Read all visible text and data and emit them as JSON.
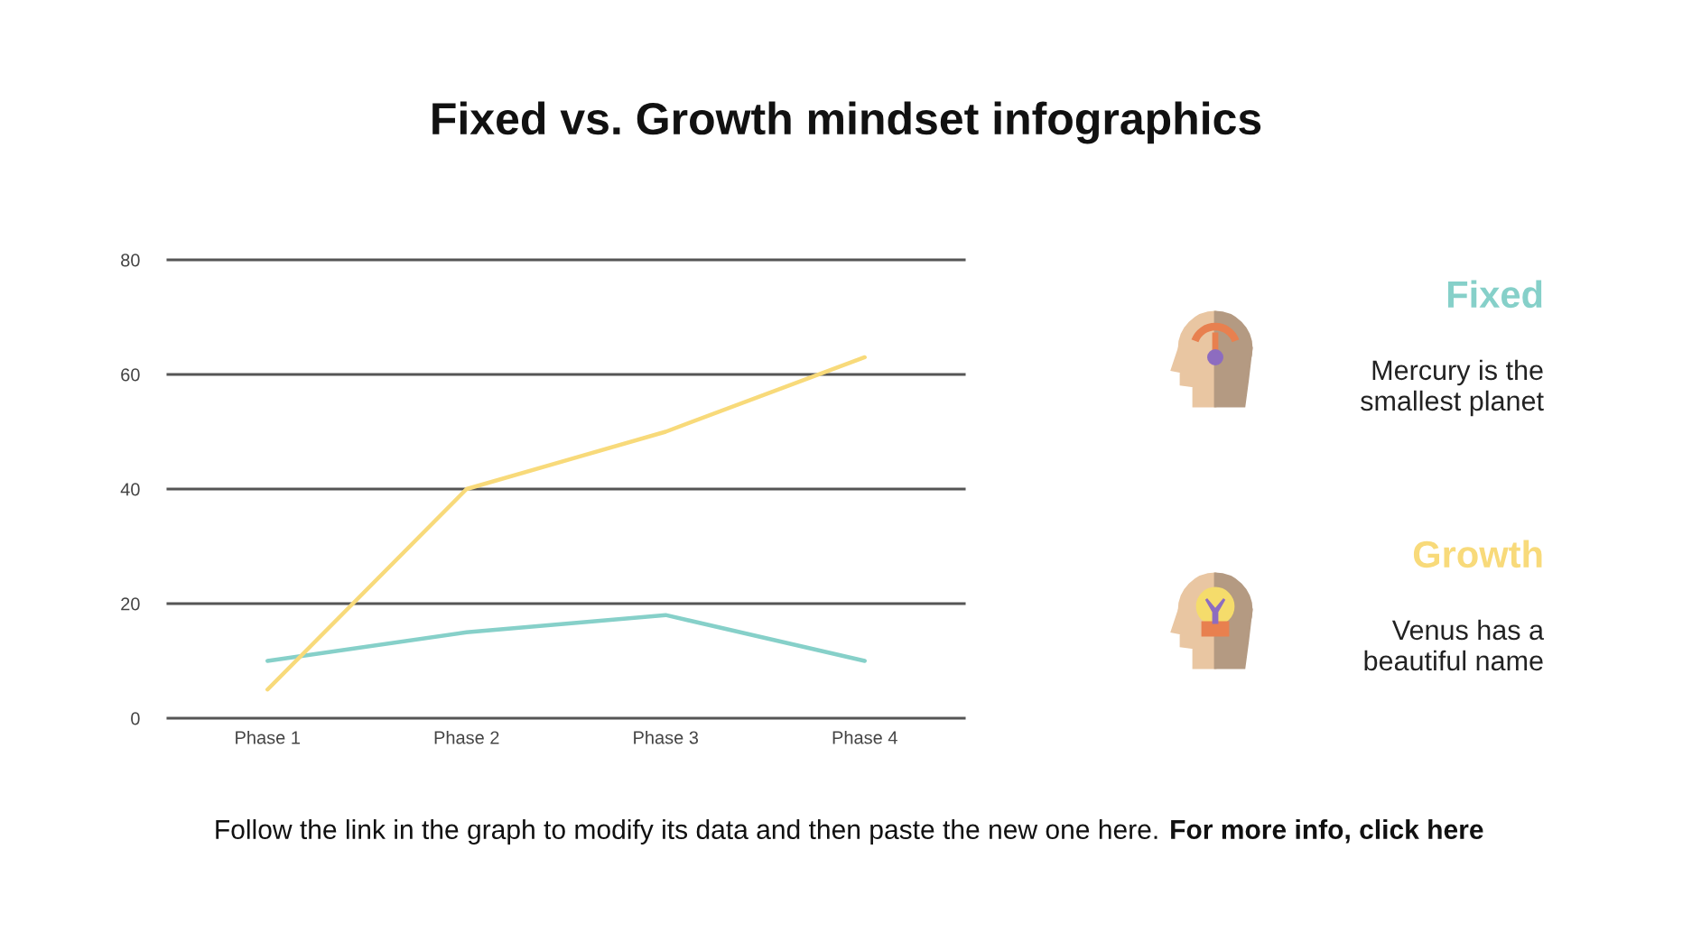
{
  "chart_data": {
    "type": "line",
    "title": "Fixed vs. Growth mindset infographics",
    "categories": [
      "Phase 1",
      "Phase 2",
      "Phase 3",
      "Phase 4"
    ],
    "series": [
      {
        "name": "Fixed",
        "color": "#86d0c9",
        "values": [
          10,
          15,
          18,
          10
        ]
      },
      {
        "name": "Growth",
        "color": "#f8da7a",
        "values": [
          5,
          40,
          50,
          63
        ]
      }
    ],
    "ylim": [
      0,
      80
    ],
    "yticks": [
      0,
      20,
      40,
      60,
      80
    ],
    "grid": "y",
    "legend": "right",
    "annotations": [
      "Mercury is the smallest planet",
      "Venus has a beautiful name",
      "Follow the link in the graph to modify its data and then paste the new one here.",
      "For more info, click here"
    ]
  }
}
